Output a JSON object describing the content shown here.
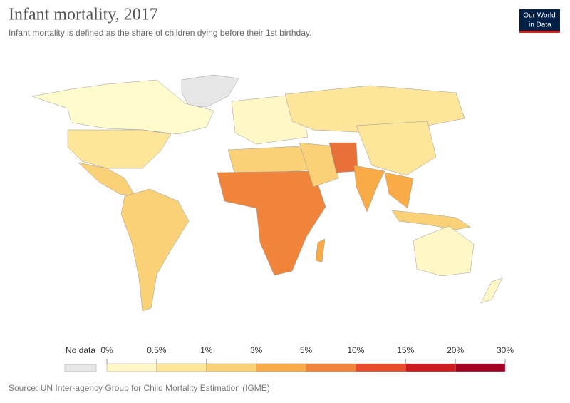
{
  "header": {
    "title": "Infant mortality, 2017",
    "subtitle": "Infant mortality is defined as the share of children dying before their 1st birthday.",
    "logo": [
      "Our World",
      "in Data"
    ]
  },
  "legend": {
    "no_data_label": "No data",
    "no_data_color": "#e6e6e6",
    "ticks": [
      {
        "value": 0,
        "label": "0%"
      },
      {
        "value": 0.5,
        "label": "0.5%"
      },
      {
        "value": 1,
        "label": "1%"
      },
      {
        "value": 3,
        "label": "3%"
      },
      {
        "value": 5,
        "label": "5%"
      },
      {
        "value": 10,
        "label": "10%"
      },
      {
        "value": 15,
        "label": "15%"
      },
      {
        "value": 20,
        "label": "20%"
      },
      {
        "value": 30,
        "label": "30%"
      }
    ],
    "colors": [
      "#fff7c6",
      "#fde59a",
      "#fbd178",
      "#f9ab48",
      "#f0843a",
      "#e84c2c",
      "#cd1a1e",
      "#a50026"
    ]
  },
  "source": "Source: UN Inter-agency Group for Child Mortality Estimation (IGME)"
}
